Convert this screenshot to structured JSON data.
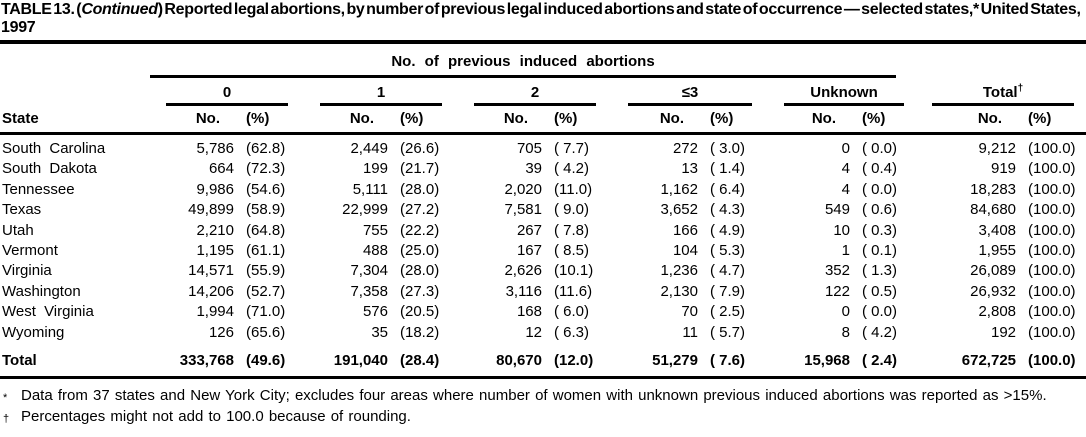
{
  "title": {
    "prefix": "TABLE 13. (",
    "continued": "Continued",
    "suffix": ") Reported legal abortions, by number of previous legal induced abortions and state of occurrence — selected states,* United States, 1997"
  },
  "table": {
    "spanner_heading": "No. of previous induced abortions",
    "state_header": "State",
    "col_no": "No.",
    "col_pct": "(%)",
    "groups": [
      {
        "label": "0"
      },
      {
        "label": "1"
      },
      {
        "label": "2"
      },
      {
        "label": "≤3"
      },
      {
        "label": "Unknown"
      },
      {
        "label": "Total",
        "marker": "†"
      }
    ],
    "rows": [
      {
        "state": "South Carolina",
        "values": [
          "5,786",
          "(62.8)",
          "2,449",
          "(26.6)",
          "705",
          "( 7.7)",
          "272",
          "( 3.0)",
          "0",
          "( 0.0)",
          "9,212",
          "(100.0)"
        ]
      },
      {
        "state": "South Dakota",
        "values": [
          "664",
          "(72.3)",
          "199",
          "(21.7)",
          "39",
          "( 4.2)",
          "13",
          "( 1.4)",
          "4",
          "( 0.4)",
          "919",
          "(100.0)"
        ]
      },
      {
        "state": "Tennessee",
        "values": [
          "9,986",
          "(54.6)",
          "5,111",
          "(28.0)",
          "2,020",
          "(11.0)",
          "1,162",
          "( 6.4)",
          "4",
          "( 0.0)",
          "18,283",
          "(100.0)"
        ]
      },
      {
        "state": "Texas",
        "values": [
          "49,899",
          "(58.9)",
          "22,999",
          "(27.2)",
          "7,581",
          "( 9.0)",
          "3,652",
          "( 4.3)",
          "549",
          "( 0.6)",
          "84,680",
          "(100.0)"
        ]
      },
      {
        "state": "Utah",
        "values": [
          "2,210",
          "(64.8)",
          "755",
          "(22.2)",
          "267",
          "( 7.8)",
          "166",
          "( 4.9)",
          "10",
          "( 0.3)",
          "3,408",
          "(100.0)"
        ]
      },
      {
        "state": "Vermont",
        "values": [
          "1,195",
          "(61.1)",
          "488",
          "(25.0)",
          "167",
          "( 8.5)",
          "104",
          "( 5.3)",
          "1",
          "( 0.1)",
          "1,955",
          "(100.0)"
        ]
      },
      {
        "state": "Virginia",
        "values": [
          "14,571",
          "(55.9)",
          "7,304",
          "(28.0)",
          "2,626",
          "(10.1)",
          "1,236",
          "( 4.7)",
          "352",
          "( 1.3)",
          "26,089",
          "(100.0)"
        ]
      },
      {
        "state": "Washington",
        "values": [
          "14,206",
          "(52.7)",
          "7,358",
          "(27.3)",
          "3,116",
          "(11.6)",
          "2,130",
          "( 7.9)",
          "122",
          "( 0.5)",
          "26,932",
          "(100.0)"
        ]
      },
      {
        "state": "West Virginia",
        "values": [
          "1,994",
          "(71.0)",
          "576",
          "(20.5)",
          "168",
          "( 6.0)",
          "70",
          "( 2.5)",
          "0",
          "( 0.0)",
          "2,808",
          "(100.0)"
        ]
      },
      {
        "state": "Wyoming",
        "values": [
          "126",
          "(65.6)",
          "35",
          "(18.2)",
          "12",
          "( 6.3)",
          "11",
          "( 5.7)",
          "8",
          "( 4.2)",
          "192",
          "(100.0)"
        ]
      }
    ],
    "total": {
      "state": "Total",
      "values": [
        "333,768",
        "(49.6)",
        "191,040",
        "(28.4)",
        "80,670",
        "(12.0)",
        "51,279",
        "( 7.6)",
        "15,968",
        "( 2.4)",
        "672,725",
        "(100.0)"
      ]
    }
  },
  "footnotes": [
    {
      "marker": "*",
      "text": "Data from 37 states and New York City; excludes four areas where number of women with unknown previous induced abortions was reported as >15%."
    },
    {
      "marker": "†",
      "text": "Percentages might not add to 100.0 because of rounding."
    }
  ],
  "colors": {
    "text": "#000000",
    "background": "#ffffff"
  }
}
